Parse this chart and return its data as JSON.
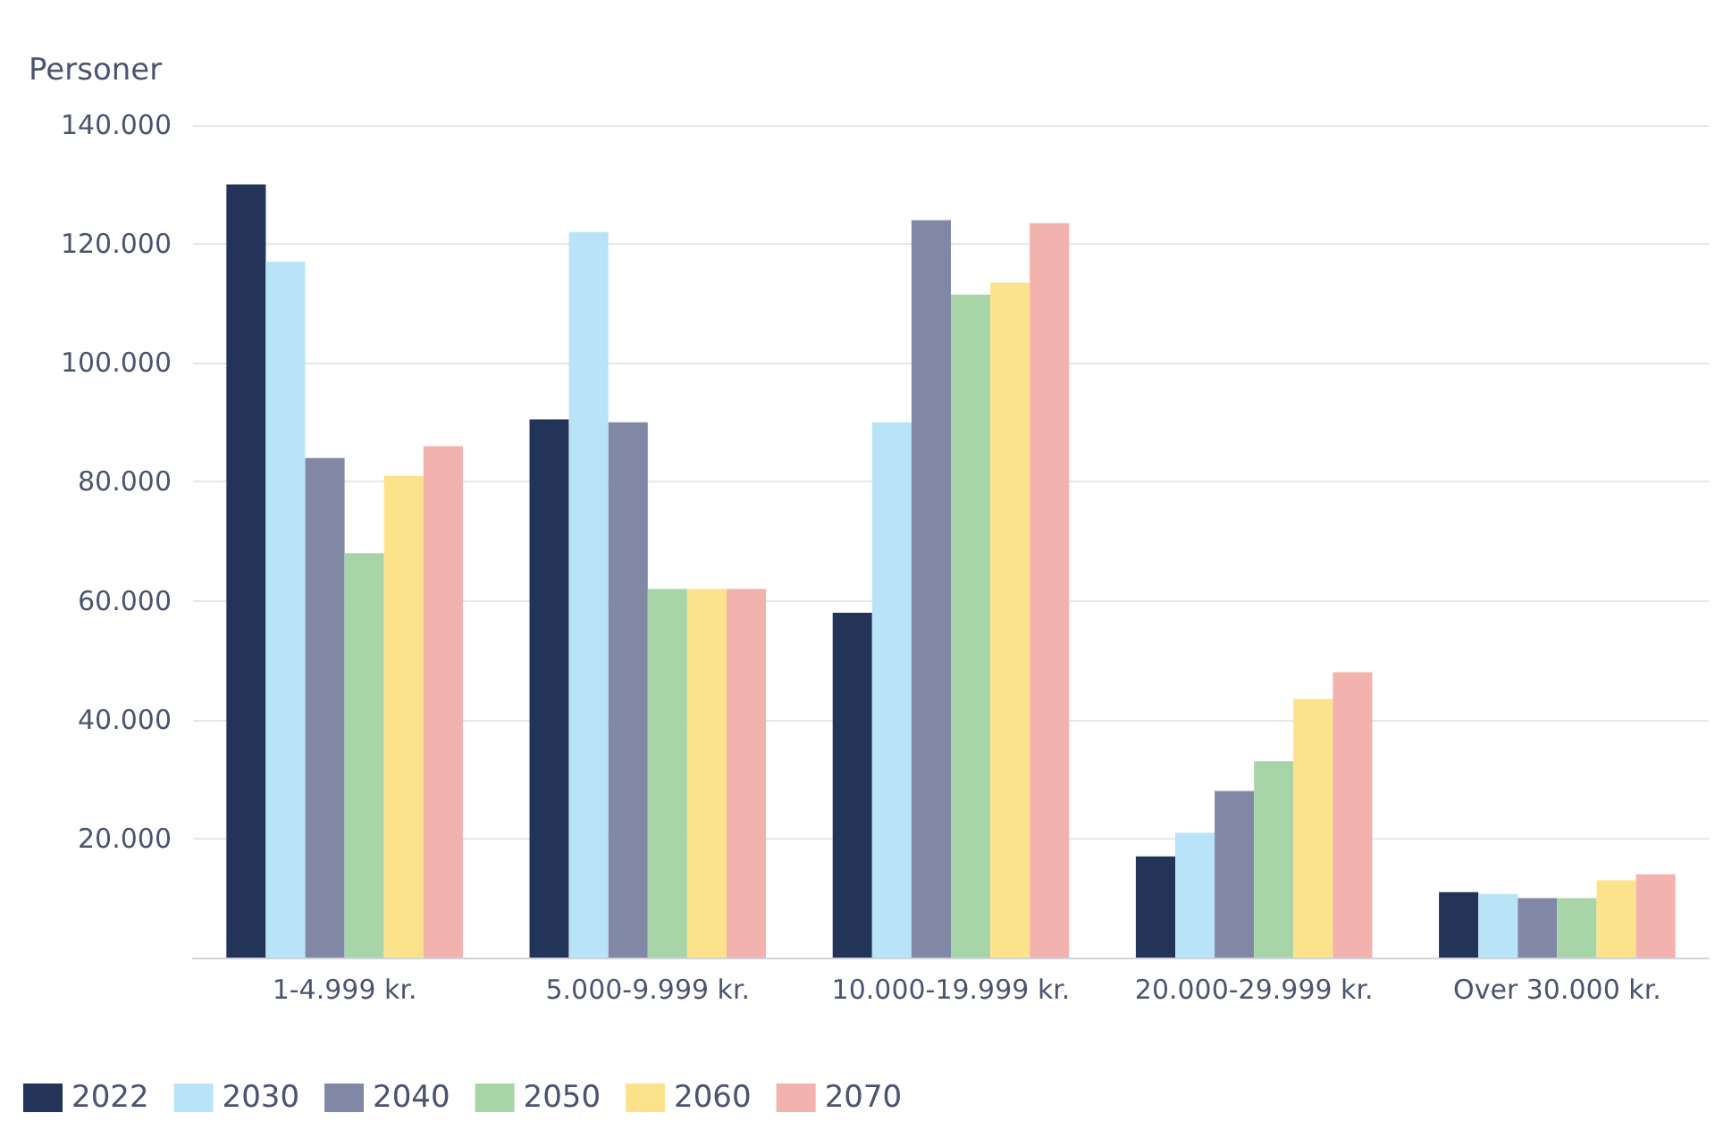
{
  "chart_data": {
    "type": "bar",
    "ylabel": "Personer",
    "categories": [
      "1-4.999 kr.",
      "5.000-9.999 kr.",
      "10.000-19.999 kr.",
      "20.000-29.999 kr.",
      "Over 30.000 kr."
    ],
    "series": [
      {
        "name": "2022",
        "color": "#243358",
        "values": [
          130000,
          90500,
          58000,
          17000,
          11000
        ]
      },
      {
        "name": "2030",
        "color": "#b9e3f7",
        "values": [
          117000,
          122000,
          90000,
          21000,
          10700
        ]
      },
      {
        "name": "2040",
        "color": "#8088a6",
        "values": [
          84000,
          90000,
          124000,
          28000,
          10000
        ]
      },
      {
        "name": "2050",
        "color": "#a8d5a8",
        "values": [
          68000,
          62000,
          111500,
          33000,
          10000
        ]
      },
      {
        "name": "2060",
        "color": "#fde28c",
        "values": [
          81000,
          62000,
          113500,
          43500,
          13000
        ]
      },
      {
        "name": "2070",
        "color": "#f2b2ae",
        "values": [
          86000,
          62000,
          123500,
          48000,
          14000
        ]
      }
    ],
    "ylim": [
      0,
      140000
    ],
    "yticks": [
      {
        "value": 0,
        "label": null
      },
      {
        "value": 20000,
        "label": "20.000"
      },
      {
        "value": 40000,
        "label": "40.000"
      },
      {
        "value": 60000,
        "label": "60.000"
      },
      {
        "value": 80000,
        "label": "80.000"
      },
      {
        "value": 100000,
        "label": "100.000"
      },
      {
        "value": 120000,
        "label": "120.000"
      },
      {
        "value": 140000,
        "label": "140.000"
      }
    ],
    "grid": "y",
    "legend": "bottom left"
  }
}
